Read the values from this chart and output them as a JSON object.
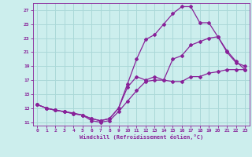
{
  "xlabel": "Windchill (Refroidissement éolien,°C)",
  "bg_color": "#cceeed",
  "grid_color": "#aad8d8",
  "line_color": "#882299",
  "xlim": [
    -0.5,
    23.5
  ],
  "ylim": [
    10.5,
    28.0
  ],
  "xticks": [
    0,
    1,
    2,
    3,
    4,
    5,
    6,
    7,
    8,
    9,
    10,
    11,
    12,
    13,
    14,
    15,
    16,
    17,
    18,
    19,
    20,
    21,
    22,
    23
  ],
  "yticks": [
    11,
    13,
    15,
    17,
    19,
    21,
    23,
    25,
    27
  ],
  "line1_x": [
    0,
    1,
    2,
    3,
    4,
    5,
    6,
    7,
    8,
    9,
    10,
    11,
    12,
    13,
    14,
    15,
    16,
    17,
    18,
    19,
    20,
    21,
    22,
    23
  ],
  "line1_y": [
    13.5,
    13.0,
    12.7,
    12.5,
    12.3,
    12.0,
    11.2,
    11.0,
    11.2,
    12.5,
    14.0,
    15.5,
    16.8,
    17.0,
    17.0,
    16.8,
    16.8,
    17.5,
    17.5,
    18.0,
    18.2,
    18.5,
    18.5,
    18.5
  ],
  "line2_x": [
    0,
    1,
    2,
    3,
    4,
    5,
    6,
    7,
    8,
    9,
    10,
    11,
    12,
    13,
    14,
    15,
    16,
    17,
    18,
    19,
    20,
    21,
    22,
    23
  ],
  "line2_y": [
    13.5,
    13.0,
    12.7,
    12.5,
    12.2,
    12.0,
    11.5,
    11.2,
    11.5,
    13.0,
    16.5,
    20.0,
    22.8,
    23.5,
    25.0,
    26.5,
    27.5,
    27.5,
    25.2,
    25.2,
    23.2,
    21.2,
    19.7,
    18.5
  ],
  "line3_x": [
    0,
    1,
    2,
    3,
    4,
    5,
    6,
    7,
    8,
    9,
    10,
    11,
    12,
    13,
    14,
    15,
    16,
    17,
    18,
    19,
    20,
    21,
    22,
    23
  ],
  "line3_y": [
    13.5,
    13.0,
    12.7,
    12.5,
    12.2,
    12.0,
    11.5,
    11.2,
    11.5,
    13.0,
    16.0,
    17.5,
    17.0,
    17.5,
    17.0,
    20.0,
    20.5,
    22.0,
    22.5,
    23.0,
    23.2,
    21.0,
    19.5,
    19.0
  ]
}
